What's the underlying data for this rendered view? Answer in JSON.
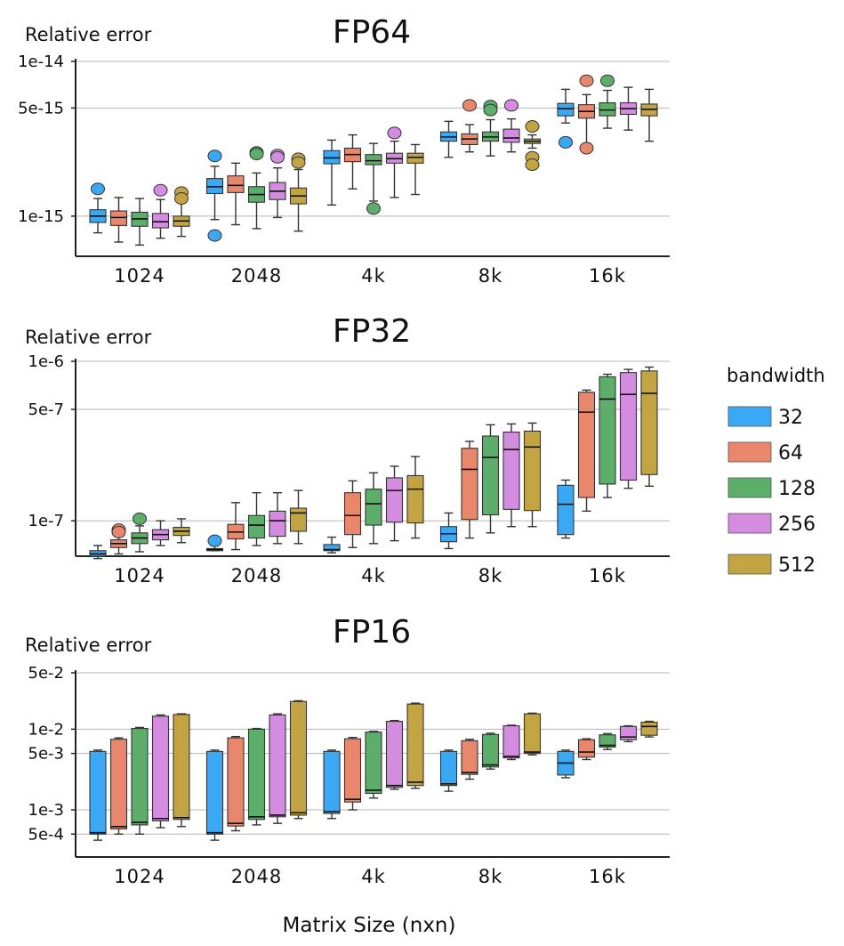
{
  "chart_data": {
    "type": "box",
    "x_label": "Matrix Size (nxn)",
    "y_label": "Relative error",
    "categories": [
      "1024",
      "2048",
      "4k",
      "8k",
      "16k"
    ],
    "legend": {
      "title": "bandwidth",
      "entries": [
        {
          "label": "32",
          "color": "#3ba8f5"
        },
        {
          "label": "64",
          "color": "#e8876c"
        },
        {
          "label": "128",
          "color": "#5cae6a"
        },
        {
          "label": "256",
          "color": "#d38ce0"
        },
        {
          "label": "512",
          "color": "#c2a542"
        }
      ]
    },
    "panels": [
      {
        "title": "FP64",
        "ylabel": "Relative error",
        "yscale": "log",
        "ylim": [
          5.5e-16,
          1e-14
        ],
        "yticks": [
          {
            "value": 1e-14,
            "label": "1e-14"
          },
          {
            "value": 5e-15,
            "label": "5e-15"
          },
          {
            "value": 1e-15,
            "label": "1e-15"
          }
        ],
        "groups": [
          [
            {
              "min": 7.8e-16,
              "q1": 9.1e-16,
              "median": 1e-15,
              "q3": 1.1e-15,
              "max": 1.3e-15,
              "outliers": [
                1.5e-15
              ]
            },
            {
              "min": 6.8e-16,
              "q1": 8.7e-16,
              "median": 9.8e-16,
              "q3": 1.08e-15,
              "max": 1.32e-15,
              "outliers": []
            },
            {
              "min": 6.5e-16,
              "q1": 8.6e-16,
              "median": 9.6e-16,
              "q3": 1.06e-15,
              "max": 1.3e-15,
              "outliers": []
            },
            {
              "min": 7.2e-16,
              "q1": 8.4e-16,
              "median": 9.2e-16,
              "q3": 1.04e-15,
              "max": 1.28e-15,
              "outliers": [
                1.47e-15
              ]
            },
            {
              "min": 7.4e-16,
              "q1": 8.6e-16,
              "median": 9.3e-16,
              "q3": 1e-15,
              "max": 1.22e-15,
              "outliers": [
                1.42e-15,
                1.3e-15
              ]
            }
          ],
          [
            {
              "min": 9.5e-16,
              "q1": 1.4e-15,
              "median": 1.55e-15,
              "q3": 1.75e-15,
              "max": 2.1e-15,
              "outliers": [
                2.45e-15,
                7.5e-16
              ]
            },
            {
              "min": 8.8e-16,
              "q1": 1.42e-15,
              "median": 1.58e-15,
              "q3": 1.82e-15,
              "max": 2.2e-15,
              "outliers": []
            },
            {
              "min": 8.3e-16,
              "q1": 1.23e-15,
              "median": 1.38e-15,
              "q3": 1.55e-15,
              "max": 1.9e-15,
              "outliers": [
                2.58e-15,
                2.52e-15
              ]
            },
            {
              "min": 9.8e-16,
              "q1": 1.28e-15,
              "median": 1.45e-15,
              "q3": 1.65e-15,
              "max": 2.05e-15,
              "outliers": [
                2.48e-15,
                2.4e-15
              ]
            },
            {
              "min": 8e-16,
              "q1": 1.2e-15,
              "median": 1.35e-15,
              "q3": 1.52e-15,
              "max": 2e-15,
              "outliers": [
                2.35e-15,
                2.22e-15
              ]
            }
          ],
          [
            {
              "min": 1.18e-15,
              "q1": 2.18e-15,
              "median": 2.38e-15,
              "q3": 2.65e-15,
              "max": 3.1e-15,
              "outliers": []
            },
            {
              "min": 1.5e-15,
              "q1": 2.25e-15,
              "median": 2.5e-15,
              "q3": 2.75e-15,
              "max": 3.35e-15,
              "outliers": []
            },
            {
              "min": 1.25e-15,
              "q1": 2.15e-15,
              "median": 2.28e-15,
              "q3": 2.5e-15,
              "max": 2.95e-15,
              "outliers": [
                1.12e-15
              ]
            },
            {
              "min": 1.32e-15,
              "q1": 2.2e-15,
              "median": 2.35e-15,
              "q3": 2.55e-15,
              "max": 3.05e-15,
              "outliers": [
                3.45e-15
              ]
            },
            {
              "min": 1.38e-15,
              "q1": 2.2e-15,
              "median": 2.4e-15,
              "q3": 2.55e-15,
              "max": 2.9e-15,
              "outliers": []
            }
          ],
          [
            {
              "min": 2.4e-15,
              "q1": 3.05e-15,
              "median": 3.25e-15,
              "q3": 3.5e-15,
              "max": 4.1e-15,
              "outliers": []
            },
            {
              "min": 2.6e-15,
              "q1": 2.9e-15,
              "median": 3.15e-15,
              "q3": 3.4e-15,
              "max": 3.9e-15,
              "outliers": [
                5.2e-15
              ]
            },
            {
              "min": 2.45e-15,
              "q1": 3.05e-15,
              "median": 3.25e-15,
              "q3": 3.5e-15,
              "max": 4.2e-15,
              "outliers": [
                5.15e-15,
                4.85e-15
              ]
            },
            {
              "min": 2.6e-15,
              "q1": 3e-15,
              "median": 3.2e-15,
              "q3": 3.65e-15,
              "max": 4.25e-15,
              "outliers": [
                5.2e-15
              ]
            },
            {
              "min": 2.75e-15,
              "q1": 2.95e-15,
              "median": 3.05e-15,
              "q3": 3.15e-15,
              "max": 3.35e-15,
              "outliers": [
                3.8e-15,
                2.4e-15,
                2.15e-15
              ]
            }
          ],
          [
            {
              "min": 4e-15,
              "q1": 4.45e-15,
              "median": 4.95e-15,
              "q3": 5.35e-15,
              "max": 6.6e-15,
              "outliers": [
                3e-15
              ]
            },
            {
              "min": 2.95e-15,
              "q1": 4.3e-15,
              "median": 4.75e-15,
              "q3": 5.25e-15,
              "max": 6.1e-15,
              "outliers": [
                7.5e-15,
                2.75e-15
              ]
            },
            {
              "min": 3.7e-15,
              "q1": 4.45e-15,
              "median": 4.85e-15,
              "q3": 5.4e-15,
              "max": 6.5e-15,
              "outliers": [
                7.5e-15
              ]
            },
            {
              "min": 3.6e-15,
              "q1": 4.55e-15,
              "median": 4.95e-15,
              "q3": 5.4e-15,
              "max": 6.8e-15,
              "outliers": []
            },
            {
              "min": 3.05e-15,
              "q1": 4.45e-15,
              "median": 4.9e-15,
              "q3": 5.3e-15,
              "max": 6.6e-15,
              "outliers": []
            }
          ]
        ]
      },
      {
        "title": "FP32",
        "ylabel": "Relative error",
        "yscale": "log",
        "ylim": [
          6e-08,
          1e-06
        ],
        "yticks": [
          {
            "value": 1e-06,
            "label": "1e-6"
          },
          {
            "value": 5e-07,
            "label": "5e-7"
          },
          {
            "value": 1e-07,
            "label": "1e-7"
          }
        ],
        "groups": [
          [
            {
              "min": 5.8e-08,
              "q1": 6e-08,
              "median": 6.2e-08,
              "q3": 6.5e-08,
              "max": 7e-08,
              "outliers": []
            },
            {
              "min": 6.2e-08,
              "q1": 6.8e-08,
              "median": 7.2e-08,
              "q3": 7.6e-08,
              "max": 8.2e-08,
              "outliers": [
                8.8e-08,
                8.5e-08
              ]
            },
            {
              "min": 6.4e-08,
              "q1": 7.2e-08,
              "median": 7.8e-08,
              "q3": 8.4e-08,
              "max": 9.3e-08,
              "outliers": [
                1.03e-07
              ]
            },
            {
              "min": 7e-08,
              "q1": 7.6e-08,
              "median": 8.2e-08,
              "q3": 8.8e-08,
              "max": 1e-07,
              "outliers": []
            },
            {
              "min": 7.3e-08,
              "q1": 8.1e-08,
              "median": 8.6e-08,
              "q3": 9.1e-08,
              "max": 1.03e-07,
              "outliers": []
            }
          ],
          [
            {
              "min": 6.5e-08,
              "q1": 6.5e-08,
              "median": 6.6e-08,
              "q3": 6.7e-08,
              "max": 7e-08,
              "outliers": [
                7.5e-08
              ]
            },
            {
              "min": 6.6e-08,
              "q1": 7.7e-08,
              "median": 8.5e-08,
              "q3": 9.5e-08,
              "max": 1.3e-07,
              "outliers": []
            },
            {
              "min": 7e-08,
              "q1": 7.8e-08,
              "median": 9.4e-08,
              "q3": 1.08e-07,
              "max": 1.5e-07,
              "outliers": []
            },
            {
              "min": 7.2e-08,
              "q1": 8e-08,
              "median": 1e-07,
              "q3": 1.15e-07,
              "max": 1.5e-07,
              "outliers": []
            },
            {
              "min": 7.2e-08,
              "q1": 8.6e-08,
              "median": 1.12e-07,
              "q3": 1.2e-07,
              "max": 1.55e-07,
              "outliers": []
            }
          ],
          [
            {
              "min": 6.3e-08,
              "q1": 6.5e-08,
              "median": 6.6e-08,
              "q3": 7.1e-08,
              "max": 7.9e-08,
              "outliers": []
            },
            {
              "min": 6.8e-08,
              "q1": 8.2e-08,
              "median": 1.08e-07,
              "q3": 1.5e-07,
              "max": 1.78e-07,
              "outliers": []
            },
            {
              "min": 7.2e-08,
              "q1": 9.4e-08,
              "median": 1.28e-07,
              "q3": 1.58e-07,
              "max": 2e-07,
              "outliers": []
            },
            {
              "min": 7.5e-08,
              "q1": 9.8e-08,
              "median": 1.55e-07,
              "q3": 1.86e-07,
              "max": 2.2e-07,
              "outliers": []
            },
            {
              "min": 7.8e-08,
              "q1": 9.7e-08,
              "median": 1.58e-07,
              "q3": 1.92e-07,
              "max": 2.53e-07,
              "outliers": []
            }
          ],
          [
            {
              "min": 6.7e-08,
              "q1": 7.4e-08,
              "median": 8.3e-08,
              "q3": 9.2e-08,
              "max": 1.12e-07,
              "outliers": []
            },
            {
              "min": 7.8e-08,
              "q1": 1.02e-07,
              "median": 2.1e-07,
              "q3": 2.85e-07,
              "max": 3.15e-07,
              "outliers": []
            },
            {
              "min": 8.4e-08,
              "q1": 1.09e-07,
              "median": 2.5e-07,
              "q3": 3.4e-07,
              "max": 4e-07,
              "outliers": []
            },
            {
              "min": 9.2e-08,
              "q1": 1.18e-07,
              "median": 2.8e-07,
              "q3": 3.6e-07,
              "max": 4.05e-07,
              "outliers": []
            },
            {
              "min": 9.2e-08,
              "q1": 1.16e-07,
              "median": 2.9e-07,
              "q3": 3.65e-07,
              "max": 4.1e-07,
              "outliers": []
            }
          ],
          [
            {
              "min": 7.8e-08,
              "q1": 8.2e-08,
              "median": 1.27e-07,
              "q3": 1.67e-07,
              "max": 1.8e-07,
              "outliers": []
            },
            {
              "min": 1.15e-07,
              "q1": 1.4e-07,
              "median": 4.8e-07,
              "q3": 6.4e-07,
              "max": 6.6e-07,
              "outliers": []
            },
            {
              "min": 1.4e-07,
              "q1": 1.7e-07,
              "median": 5.8e-07,
              "q3": 8e-07,
              "max": 8.3e-07,
              "outliers": []
            },
            {
              "min": 1.6e-07,
              "q1": 1.8e-07,
              "median": 6.2e-07,
              "q3": 8.5e-07,
              "max": 8.9e-07,
              "outliers": []
            },
            {
              "min": 1.65e-07,
              "q1": 1.95e-07,
              "median": 6.3e-07,
              "q3": 8.7e-07,
              "max": 9.2e-07,
              "outliers": []
            }
          ]
        ]
      },
      {
        "title": "FP16",
        "ylabel": "Relative error",
        "yscale": "log",
        "ylim": [
          0.00026,
          0.05
        ],
        "yticks": [
          {
            "value": 0.05,
            "label": "5e-2"
          },
          {
            "value": 0.01,
            "label": "1e-2"
          },
          {
            "value": 0.005,
            "label": "5e-3"
          },
          {
            "value": 0.001,
            "label": "1e-3"
          },
          {
            "value": 0.0005,
            "label": "5e-4"
          }
        ],
        "groups": [
          [
            {
              "min": 0.00042,
              "q1": 0.0005,
              "median": 0.00052,
              "q3": 0.0053,
              "max": 0.0055,
              "outliers": []
            },
            {
              "min": 0.0005,
              "q1": 0.00058,
              "median": 0.00062,
              "q3": 0.0075,
              "max": 0.0078,
              "outliers": []
            },
            {
              "min": 0.0005,
              "q1": 0.00065,
              "median": 0.0007,
              "q3": 0.0102,
              "max": 0.0105,
              "outliers": []
            },
            {
              "min": 0.0006,
              "q1": 0.00073,
              "median": 0.00078,
              "q3": 0.0145,
              "max": 0.015,
              "outliers": []
            },
            {
              "min": 0.00062,
              "q1": 0.00076,
              "median": 0.0008,
              "q3": 0.0152,
              "max": 0.0155,
              "outliers": []
            }
          ],
          [
            {
              "min": 0.00042,
              "q1": 0.0005,
              "median": 0.00052,
              "q3": 0.0053,
              "max": 0.0055,
              "outliers": []
            },
            {
              "min": 0.00055,
              "q1": 0.00063,
              "median": 0.00068,
              "q3": 0.0078,
              "max": 0.0081,
              "outliers": []
            },
            {
              "min": 0.00065,
              "q1": 0.00076,
              "median": 0.00082,
              "q3": 0.01,
              "max": 0.0102,
              "outliers": []
            },
            {
              "min": 0.00068,
              "q1": 0.00082,
              "median": 0.00086,
              "q3": 0.015,
              "max": 0.0155,
              "outliers": []
            },
            {
              "min": 0.00078,
              "q1": 0.00086,
              "median": 0.00092,
              "q3": 0.022,
              "max": 0.0225,
              "outliers": []
            }
          ],
          [
            {
              "min": 0.00078,
              "q1": 0.0009,
              "median": 0.00095,
              "q3": 0.0053,
              "max": 0.0055,
              "outliers": []
            },
            {
              "min": 0.001,
              "q1": 0.00125,
              "median": 0.00135,
              "q3": 0.0076,
              "max": 0.0079,
              "outliers": []
            },
            {
              "min": 0.0014,
              "q1": 0.0016,
              "median": 0.00175,
              "q3": 0.0092,
              "max": 0.0094,
              "outliers": []
            },
            {
              "min": 0.0018,
              "q1": 0.0019,
              "median": 0.002,
              "q3": 0.0125,
              "max": 0.0128,
              "outliers": []
            },
            {
              "min": 0.00185,
              "q1": 0.002,
              "median": 0.0022,
              "q3": 0.0205,
              "max": 0.021,
              "outliers": []
            }
          ],
          [
            {
              "min": 0.0017,
              "q1": 0.002,
              "median": 0.0021,
              "q3": 0.0053,
              "max": 0.0055,
              "outliers": []
            },
            {
              "min": 0.0024,
              "q1": 0.00275,
              "median": 0.0029,
              "q3": 0.0072,
              "max": 0.0075,
              "outliers": []
            },
            {
              "min": 0.0032,
              "q1": 0.0034,
              "median": 0.0036,
              "q3": 0.0086,
              "max": 0.0089,
              "outliers": []
            },
            {
              "min": 0.0042,
              "q1": 0.0044,
              "median": 0.0046,
              "q3": 0.011,
              "max": 0.0112,
              "outliers": []
            },
            {
              "min": 0.0048,
              "q1": 0.005,
              "median": 0.0052,
              "q3": 0.0155,
              "max": 0.0158,
              "outliers": []
            }
          ],
          [
            {
              "min": 0.0025,
              "q1": 0.0027,
              "median": 0.0038,
              "q3": 0.0053,
              "max": 0.0055,
              "outliers": []
            },
            {
              "min": 0.0042,
              "q1": 0.0045,
              "median": 0.0052,
              "q3": 0.0074,
              "max": 0.0076,
              "outliers": []
            },
            {
              "min": 0.0056,
              "q1": 0.006,
              "median": 0.0063,
              "q3": 0.0085,
              "max": 0.0088,
              "outliers": []
            },
            {
              "min": 0.007,
              "q1": 0.0074,
              "median": 0.008,
              "q3": 0.0108,
              "max": 0.011,
              "outliers": []
            },
            {
              "min": 0.008,
              "q1": 0.0084,
              "median": 0.0108,
              "q3": 0.0122,
              "max": 0.0125,
              "outliers": []
            }
          ]
        ]
      }
    ]
  }
}
